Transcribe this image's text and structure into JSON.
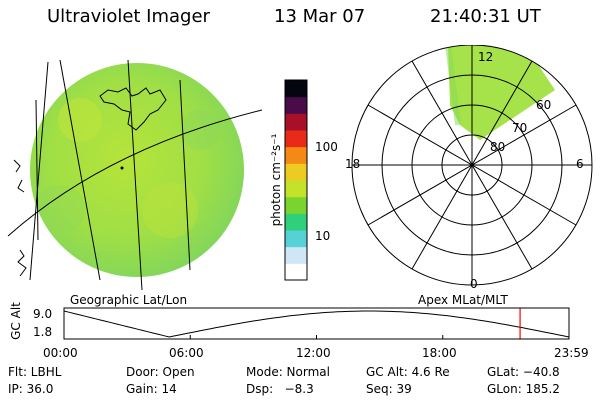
{
  "header": {
    "instrument": "Ultraviolet Imager",
    "date": "13 Mar 07",
    "time": "21:40:31 UT"
  },
  "colorbar": {
    "unit_label": "photon cm⁻²s⁻¹",
    "tick_labels": [
      "100",
      "10"
    ],
    "colors": [
      "#ffffff",
      "#cfe6f6",
      "#56d1d6",
      "#2fd07c",
      "#7ad430",
      "#c4e22a",
      "#eecb22",
      "#f48a15",
      "#e82a18",
      "#a8102a",
      "#4a0c48",
      "#05050f"
    ]
  },
  "geo_panel": {
    "label": "Geographic Lat/Lon",
    "disk_color": "#9fdf45"
  },
  "polar_panel": {
    "label": "Apex MLat/MLT",
    "lat_labels": [
      "80",
      "70",
      "60"
    ],
    "mlt_labels": {
      "top": "12",
      "left": "18",
      "right": "6",
      "bottom": "0"
    },
    "wedge_color": "#a6e24a"
  },
  "altitude_plot": {
    "axis_title": "GC Alt",
    "y_ticks": [
      "9.0",
      "1.8"
    ],
    "x_ticks": [
      "00:00",
      "06:00",
      "12:00",
      "18:00",
      "23:59"
    ],
    "current_marker_hours": 21.675,
    "marker_color": "#ff0000"
  },
  "info": {
    "flt": "Flt: LBHL",
    "door": "Door: Open",
    "mode": "Mode: Normal",
    "gc_alt": "GC Alt: 4.6 Re",
    "glat": "GLat: −40.8",
    "ip": "IP: 36.0",
    "gain": "Gain: 14",
    "dsp": "Dsp:   −8.3",
    "seq": "Seq: 39",
    "glon": "GLon: 185.2"
  }
}
